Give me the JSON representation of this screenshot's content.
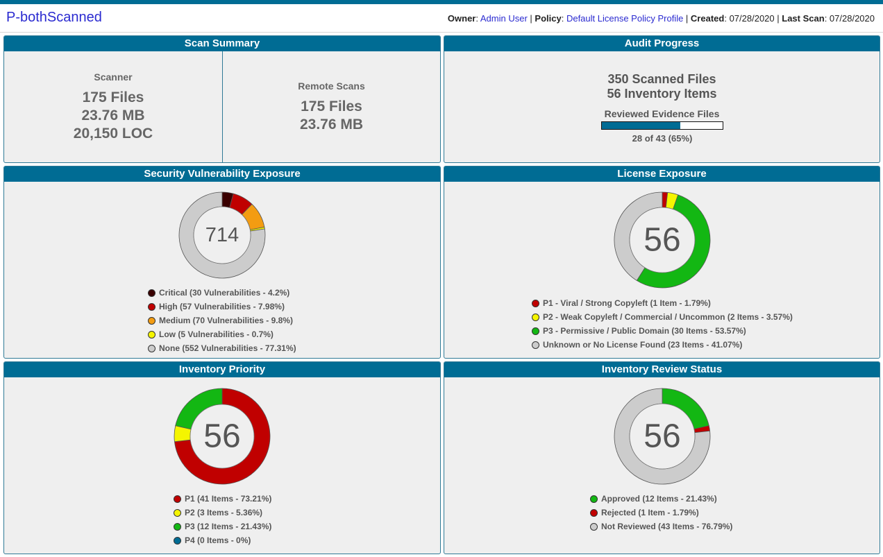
{
  "header": {
    "project_title": "P-bothScanned",
    "owner_label": "Owner",
    "owner_value": "Admin User",
    "policy_label": "Policy",
    "policy_value": "Default License Policy Profile",
    "created_label": "Created",
    "created_value": "07/28/2020",
    "last_scan_label": "Last Scan",
    "last_scan_value": "07/28/2020"
  },
  "scan_summary": {
    "title": "Scan Summary",
    "scanner": {
      "label": "Scanner",
      "files": "175 Files",
      "size": "23.76 MB",
      "loc": "20,150 LOC"
    },
    "remote": {
      "label": "Remote Scans",
      "files": "175 Files",
      "size": "23.76 MB"
    }
  },
  "audit_progress": {
    "title": "Audit Progress",
    "scanned_files": "350 Scanned Files",
    "inventory_items": "56 Inventory Items",
    "reviewed_label": "Reviewed Evidence Files",
    "progress_text": "28 of 43 (65%)",
    "progress_fraction": 0.65,
    "progress_color": "#006c94"
  },
  "charts": {
    "security": {
      "title": "Security Vulnerability Exposure",
      "center": "714",
      "legend": [
        "Critical (30 Vulnerabilities - 4.2%)",
        "High (57 Vulnerabilities - 7.98%)",
        "Medium (70 Vulnerabilities - 9.8%)",
        "Low (5 Vulnerabilities - 0.7%)",
        "None (552 Vulnerabilities - 77.31%)"
      ]
    },
    "license": {
      "title": "License Exposure",
      "center": "56",
      "legend": [
        "P1 - Viral / Strong Copyleft (1 Item - 1.79%)",
        "P2 - Weak Copyleft / Commercial / Uncommon (2 Items - 3.57%)",
        "P3 - Permissive / Public Domain (30 Items - 53.57%)",
        "Unknown or No License Found (23 Items - 41.07%)"
      ]
    },
    "priority": {
      "title": "Inventory Priority",
      "center": "56",
      "legend": [
        "P1 (41 Items - 73.21%)",
        "P2 (3 Items - 5.36%)",
        "P3 (12 Items - 21.43%)",
        "P4 (0 Items - 0%)"
      ]
    },
    "review": {
      "title": "Inventory Review Status",
      "center": "56",
      "legend": [
        "Approved (12 Items - 21.43%)",
        "Rejected (1 Item - 1.79%)",
        "Not Reviewed (43 Items - 76.79%)"
      ]
    }
  },
  "chart_data": [
    {
      "type": "pie",
      "title": "Security Vulnerability Exposure",
      "categories": [
        "Critical",
        "High",
        "Medium",
        "Low",
        "None"
      ],
      "values": [
        30,
        57,
        70,
        5,
        552
      ],
      "colors": [
        "#3a0000",
        "#c00000",
        "#f39c12",
        "#f5f500",
        "#cccccc"
      ],
      "total": 714
    },
    {
      "type": "pie",
      "title": "License Exposure",
      "categories": [
        "P1 - Viral / Strong Copyleft",
        "P2 - Weak Copyleft / Commercial / Uncommon",
        "P3 - Permissive / Public Domain",
        "Unknown or No License Found"
      ],
      "values": [
        1,
        2,
        30,
        23
      ],
      "colors": [
        "#c00000",
        "#f5f500",
        "#13b713",
        "#cccccc"
      ],
      "total": 56
    },
    {
      "type": "pie",
      "title": "Inventory Priority",
      "categories": [
        "P1",
        "P2",
        "P3",
        "P4"
      ],
      "values": [
        41,
        3,
        12,
        0
      ],
      "colors": [
        "#c00000",
        "#f5f500",
        "#13b713",
        "#006c94"
      ],
      "total": 56
    },
    {
      "type": "pie",
      "title": "Inventory Review Status",
      "categories": [
        "Approved",
        "Rejected",
        "Not Reviewed"
      ],
      "values": [
        12,
        1,
        43
      ],
      "colors": [
        "#13b713",
        "#c00000",
        "#cccccc"
      ],
      "total": 56
    }
  ]
}
